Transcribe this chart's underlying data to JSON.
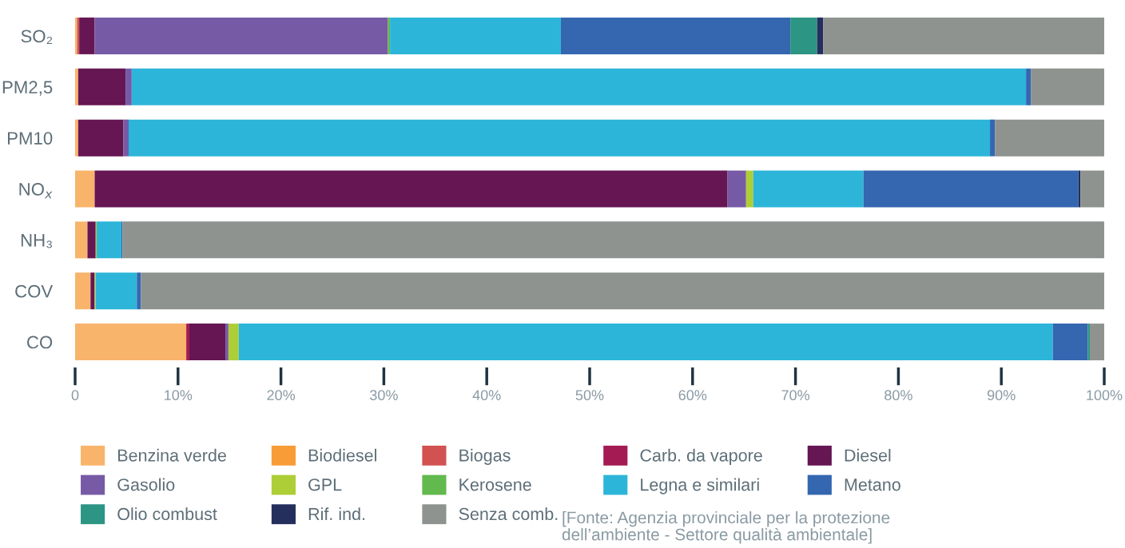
{
  "chart_data": {
    "type": "bar",
    "orientation": "horizontal",
    "stacked": true,
    "categories": [
      "SO₂",
      "PM2,5",
      "PM10",
      "NO$_{x}$",
      "NH₃",
      "COV",
      "CO"
    ],
    "series": [
      {
        "name": "Benzina verde",
        "color": "#f9b46b",
        "values": [
          0.1,
          0.3,
          0.3,
          1.9,
          1.2,
          1.5,
          10.8
        ]
      },
      {
        "name": "Biodiesel",
        "color": "#f89c38",
        "values": [
          0.1,
          0,
          0,
          0,
          0,
          0,
          0
        ]
      },
      {
        "name": "Biogas",
        "color": "#d15251",
        "values": [
          0.2,
          0,
          0,
          0,
          0,
          0,
          0
        ]
      },
      {
        "name": "Carb. da vapore",
        "color": "#a31b52",
        "values": [
          0,
          0,
          0,
          0,
          0,
          0,
          0.3
        ]
      },
      {
        "name": "Diesel",
        "color": "#661652",
        "values": [
          1.5,
          4.6,
          4.4,
          61.5,
          0.8,
          0.4,
          3.5
        ]
      },
      {
        "name": "Gasolio",
        "color": "#775aa5",
        "values": [
          28.5,
          0.6,
          0.5,
          1.8,
          0,
          0,
          0.3
        ]
      },
      {
        "name": "GPL",
        "color": "#adce37",
        "values": [
          0,
          0,
          0,
          0.7,
          0.1,
          0.1,
          1.0
        ]
      },
      {
        "name": "Kerosene",
        "color": "#62b94d",
        "values": [
          0.2,
          0,
          0,
          0,
          0,
          0,
          0
        ]
      },
      {
        "name": "Legna e similari",
        "color": "#2cb5d9",
        "values": [
          16.6,
          86.9,
          83.7,
          10.7,
          2.4,
          4.0,
          79.1
        ]
      },
      {
        "name": "Metano",
        "color": "#3467b0",
        "values": [
          22.3,
          0.5,
          0.5,
          20.9,
          0.1,
          0.4,
          3.4
        ]
      },
      {
        "name": "Olio combust",
        "color": "#2c9584",
        "values": [
          2.6,
          0,
          0,
          0,
          0,
          0,
          0.2
        ]
      },
      {
        "name": "Rif. ind.",
        "color": "#252f5e",
        "values": [
          0.6,
          0,
          0,
          0.2,
          0,
          0,
          0
        ]
      },
      {
        "name": "Senza comb.",
        "color": "#8e938f",
        "values": [
          27.3,
          7.1,
          10.6,
          2.3,
          95.4,
          93.6,
          1.4
        ]
      }
    ],
    "xlim": [
      0,
      100
    ],
    "xticks": [
      {
        "value": 0,
        "label": "0"
      },
      {
        "value": 10,
        "label": "10%"
      },
      {
        "value": 20,
        "label": "20%"
      },
      {
        "value": 30,
        "label": "30%"
      },
      {
        "value": 40,
        "label": "40%"
      },
      {
        "value": 50,
        "label": "50%"
      },
      {
        "value": 60,
        "label": "60%"
      },
      {
        "value": 70,
        "label": "70%"
      },
      {
        "value": 80,
        "label": "80%"
      },
      {
        "value": 90,
        "label": "90%"
      },
      {
        "value": 100,
        "label": "100%"
      }
    ],
    "legend": "bottom",
    "grid": false,
    "annotations": [
      "[Fonte: Agenzia provinciale per la protezione\ndell’ambiente - Settore qualità ambientale]"
    ]
  }
}
